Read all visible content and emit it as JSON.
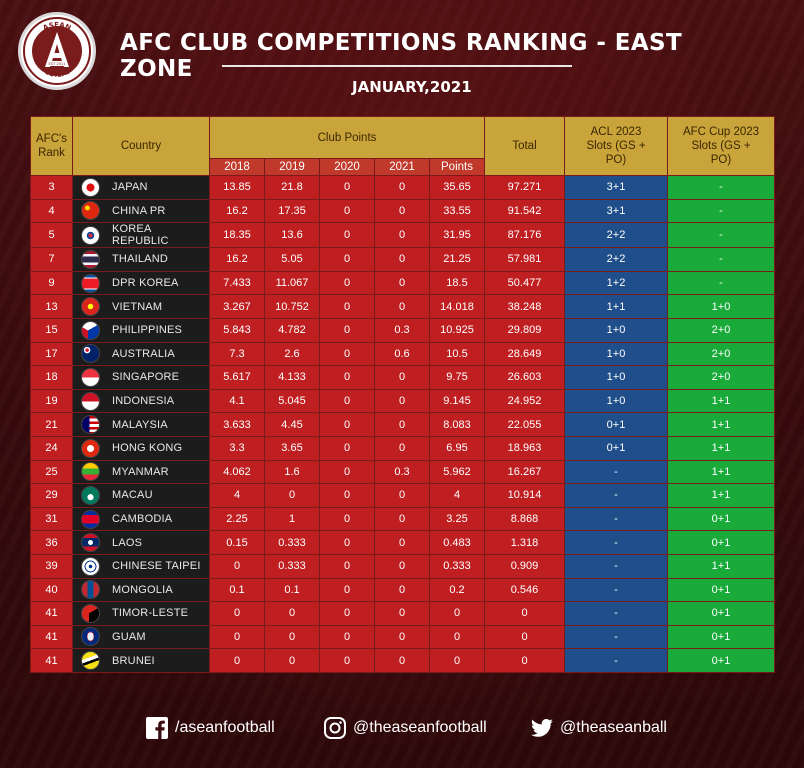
{
  "header": {
    "title": "AFC CLUB COMPETITIONS RANKING - EAST ZONE",
    "subtitle": "JANUARY,2021",
    "logo_text": "ASEAN FOOTBALL",
    "logo_badge": "EST 2011"
  },
  "table": {
    "headers": {
      "rank": "AFC's Rank",
      "country": "Country",
      "club_points": "Club Points",
      "total": "Total",
      "acl": "ACL 2023 Slots (GS + PO)",
      "cup": "AFC Cup 2023 Slots (GS + PO)",
      "years": [
        "2018",
        "2019",
        "2020",
        "2021",
        "Points"
      ]
    },
    "rows": [
      {
        "rank": "3",
        "country": "JAPAN",
        "flag": "japan-flag",
        "p2018": "13.85",
        "p2019": "21.8",
        "p2020": "0",
        "p2021": "0",
        "points": "35.65",
        "total": "97.271",
        "acl": "3+1",
        "cup": "-"
      },
      {
        "rank": "4",
        "country": "CHINA PR",
        "flag": "china-flag",
        "p2018": "16.2",
        "p2019": "17.35",
        "p2020": "0",
        "p2021": "0",
        "points": "33.55",
        "total": "91.542",
        "acl": "3+1",
        "cup": "-"
      },
      {
        "rank": "5",
        "country": "KOREA REPUBLIC",
        "flag": "korea-flag",
        "p2018": "18.35",
        "p2019": "13.6",
        "p2020": "0",
        "p2021": "0",
        "points": "31.95",
        "total": "87.176",
        "acl": "2+2",
        "cup": "-"
      },
      {
        "rank": "7",
        "country": "THAILAND",
        "flag": "thailand-flag",
        "p2018": "16.2",
        "p2019": "5.05",
        "p2020": "0",
        "p2021": "0",
        "points": "21.25",
        "total": "57.981",
        "acl": "2+2",
        "cup": "-"
      },
      {
        "rank": "9",
        "country": "DPR KOREA",
        "flag": "dpr-korea-flag",
        "p2018": "7.433",
        "p2019": "11.067",
        "p2020": "0",
        "p2021": "0",
        "points": "18.5",
        "total": "50.477",
        "acl": "1+2",
        "cup": "-"
      },
      {
        "rank": "13",
        "country": "VIETNAM",
        "flag": "vietnam-flag",
        "p2018": "3.267",
        "p2019": "10.752",
        "p2020": "0",
        "p2021": "0",
        "points": "14.018",
        "total": "38.248",
        "acl": "1+1",
        "cup": "1+0"
      },
      {
        "rank": "15",
        "country": "PHILIPPINES",
        "flag": "philippines-flag",
        "p2018": "5.843",
        "p2019": "4.782",
        "p2020": "0",
        "p2021": "0.3",
        "points": "10.925",
        "total": "29.809",
        "acl": "1+0",
        "cup": "2+0"
      },
      {
        "rank": "17",
        "country": "AUSTRALIA",
        "flag": "australia-flag",
        "p2018": "7.3",
        "p2019": "2.6",
        "p2020": "0",
        "p2021": "0.6",
        "points": "10.5",
        "total": "28.649",
        "acl": "1+0",
        "cup": "2+0"
      },
      {
        "rank": "18",
        "country": "SINGAPORE",
        "flag": "singapore-flag",
        "p2018": "5.617",
        "p2019": "4.133",
        "p2020": "0",
        "p2021": "0",
        "points": "9.75",
        "total": "26.603",
        "acl": "1+0",
        "cup": "2+0"
      },
      {
        "rank": "19",
        "country": "INDONESIA",
        "flag": "indonesia-flag",
        "p2018": "4.1",
        "p2019": "5.045",
        "p2020": "0",
        "p2021": "0",
        "points": "9.145",
        "total": "24.952",
        "acl": "1+0",
        "cup": "1+1"
      },
      {
        "rank": "21",
        "country": "MALAYSIA",
        "flag": "malaysia-flag",
        "p2018": "3.633",
        "p2019": "4.45",
        "p2020": "0",
        "p2021": "0",
        "points": "8.083",
        "total": "22.055",
        "acl": "0+1",
        "cup": "1+1"
      },
      {
        "rank": "24",
        "country": "HONG KONG",
        "flag": "hong-kong-flag",
        "p2018": "3.3",
        "p2019": "3.65",
        "p2020": "0",
        "p2021": "0",
        "points": "6.95",
        "total": "18.963",
        "acl": "0+1",
        "cup": "1+1"
      },
      {
        "rank": "25",
        "country": "MYANMAR",
        "flag": "myanmar-flag",
        "p2018": "4.062",
        "p2019": "1.6",
        "p2020": "0",
        "p2021": "0.3",
        "points": "5.962",
        "total": "16.267",
        "acl": "-",
        "cup": "1+1"
      },
      {
        "rank": "29",
        "country": "MACAU",
        "flag": "macau-flag",
        "p2018": "4",
        "p2019": "0",
        "p2020": "0",
        "p2021": "0",
        "points": "4",
        "total": "10.914",
        "acl": "-",
        "cup": "1+1"
      },
      {
        "rank": "31",
        "country": "CAMBODIA",
        "flag": "cambodia-flag",
        "p2018": "2.25",
        "p2019": "1",
        "p2020": "0",
        "p2021": "0",
        "points": "3.25",
        "total": "8.868",
        "acl": "-",
        "cup": "0+1"
      },
      {
        "rank": "36",
        "country": "LAOS",
        "flag": "laos-flag",
        "p2018": "0.15",
        "p2019": "0.333",
        "p2020": "0",
        "p2021": "0",
        "points": "0.483",
        "total": "1.318",
        "acl": "-",
        "cup": "0+1"
      },
      {
        "rank": "39",
        "country": "CHINESE TAIPEI",
        "flag": "chinese-taipei-flag",
        "p2018": "0",
        "p2019": "0.333",
        "p2020": "0",
        "p2021": "0",
        "points": "0.333",
        "total": "0.909",
        "acl": "-",
        "cup": "1+1"
      },
      {
        "rank": "40",
        "country": "MONGOLIA",
        "flag": "mongolia-flag",
        "p2018": "0.1",
        "p2019": "0.1",
        "p2020": "0",
        "p2021": "0",
        "points": "0.2",
        "total": "0.546",
        "acl": "-",
        "cup": "0+1"
      },
      {
        "rank": "41",
        "country": "TIMOR-LESTE",
        "flag": "timor-leste-flag",
        "p2018": "0",
        "p2019": "0",
        "p2020": "0",
        "p2021": "0",
        "points": "0",
        "total": "0",
        "acl": "-",
        "cup": "0+1"
      },
      {
        "rank": "41",
        "country": "GUAM",
        "flag": "guam-flag",
        "p2018": "0",
        "p2019": "0",
        "p2020": "0",
        "p2021": "0",
        "points": "0",
        "total": "0",
        "acl": "-",
        "cup": "0+1"
      },
      {
        "rank": "41",
        "country": "BRUNEI",
        "flag": "brunei-flag",
        "p2018": "0",
        "p2019": "0",
        "p2020": "0",
        "p2021": "0",
        "points": "0",
        "total": "0",
        "acl": "-",
        "cup": "0+1"
      }
    ]
  },
  "colors": {
    "header_gold": "#c9a43a",
    "points_red": "#c01f21",
    "acl_blue": "#1f4e8a",
    "cup_green": "#1aaa3a"
  },
  "footer": {
    "facebook": "/aseanfootball",
    "facebook_icon": "facebook-icon",
    "instagram": "@theaseanfootball",
    "instagram_icon": "instagram-icon",
    "twitter": "@theaseanball",
    "twitter_icon": "twitter-icon"
  }
}
